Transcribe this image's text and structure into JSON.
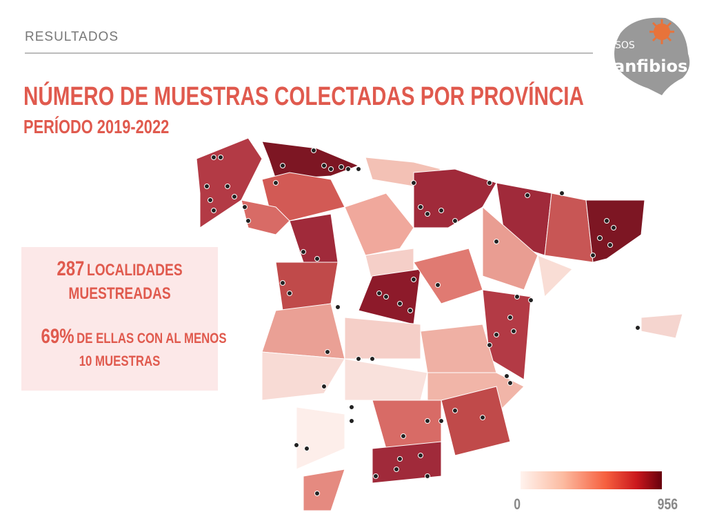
{
  "header": {
    "section": "RESULTADOS",
    "title": "NÚMERO DE MUESTRAS COLECTADAS POR PROVÍNCIA",
    "subtitle": "PERÍODO 2019-2022"
  },
  "logo": {
    "top": "SOS",
    "bottom": "anfibios"
  },
  "info": {
    "count": "287",
    "count_label": "LOCALIDADES",
    "count_label2": "MUESTREADAS",
    "pct": "69%",
    "pct_label": "DE ELLAS CON AL MENOS",
    "pct_label2": "10 MUESTRAS"
  },
  "legend": {
    "min": "0",
    "max": "956"
  },
  "colors": {
    "accent": "#e05a4e",
    "scale_low": "#fff3ee",
    "scale_high": "#67000d"
  }
}
